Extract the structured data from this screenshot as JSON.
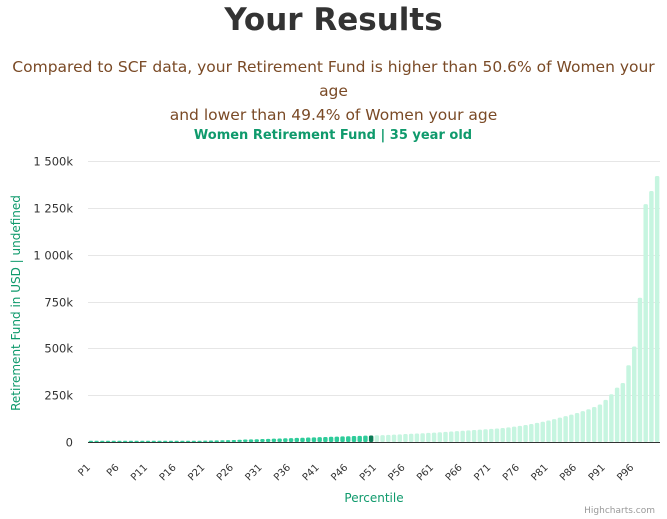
{
  "page": {
    "title": "Your Results",
    "summary_line1": "Compared to SCF data, your Retirement Fund is higher than 50.6% of Women your age",
    "summary_line2": "and lower than 49.4% of Women your age"
  },
  "colors": {
    "highlight": "#2ecc9a",
    "user_bar": "#0c7a55",
    "other_bars": "#c6f5e0",
    "title_text": "#333333",
    "summary_text": "#7a4a26",
    "chart_title": "#0f9a6c",
    "axis_label": "#0f9a6c",
    "tick_text": "#333333",
    "grid": "#e6e6e6",
    "credits": "#999999"
  },
  "chart_data": {
    "type": "bar",
    "title": "Women Retirement Fund | 35 year old",
    "xlabel": "Percentile",
    "ylabel": "Retirement Fund in USD | undefined",
    "credits": "Highcharts.com",
    "ylim": [
      0,
      1500000
    ],
    "y_ticks": [
      0,
      250000,
      500000,
      750000,
      1000000,
      1250000,
      1500000
    ],
    "y_tick_labels": [
      "0",
      "250k",
      "500k",
      "750k",
      "1 000k",
      "1 250k",
      "1 500k"
    ],
    "x_tick_labels": [
      "P1",
      "P6",
      "P11",
      "P16",
      "P21",
      "P26",
      "P31",
      "P36",
      "P41",
      "P46",
      "P51",
      "P56",
      "P61",
      "P66",
      "P71",
      "P76",
      "P81",
      "P86",
      "P91",
      "P96"
    ],
    "grid": true,
    "user_percentile": 50,
    "highlight_through": 50,
    "categories": [
      "P1",
      "P2",
      "P3",
      "P4",
      "P5",
      "P6",
      "P7",
      "P8",
      "P9",
      "P10",
      "P11",
      "P12",
      "P13",
      "P14",
      "P15",
      "P16",
      "P17",
      "P18",
      "P19",
      "P20",
      "P21",
      "P22",
      "P23",
      "P24",
      "P25",
      "P26",
      "P27",
      "P28",
      "P29",
      "P30",
      "P31",
      "P32",
      "P33",
      "P34",
      "P35",
      "P36",
      "P37",
      "P38",
      "P39",
      "P40",
      "P41",
      "P42",
      "P43",
      "P44",
      "P45",
      "P46",
      "P47",
      "P48",
      "P49",
      "P50",
      "P51",
      "P52",
      "P53",
      "P54",
      "P55",
      "P56",
      "P57",
      "P58",
      "P59",
      "P60",
      "P61",
      "P62",
      "P63",
      "P64",
      "P65",
      "P66",
      "P67",
      "P68",
      "P69",
      "P70",
      "P71",
      "P72",
      "P73",
      "P74",
      "P75",
      "P76",
      "P77",
      "P78",
      "P79",
      "P80",
      "P81",
      "P82",
      "P83",
      "P84",
      "P85",
      "P86",
      "P87",
      "P88",
      "P89",
      "P90",
      "P91",
      "P92",
      "P93",
      "P94",
      "P95",
      "P96",
      "P97",
      "P98",
      "P99",
      "P100"
    ],
    "values": [
      0,
      0,
      0,
      0,
      100,
      200,
      500,
      1000,
      1500,
      2000,
      2500,
      3000,
      3500,
      4000,
      4500,
      5000,
      5500,
      6000,
      6500,
      7000,
      7500,
      8000,
      8500,
      9000,
      10000,
      11000,
      12000,
      13000,
      14000,
      15000,
      16000,
      17000,
      18000,
      19000,
      20000,
      21000,
      22000,
      23000,
      24000,
      25000,
      26000,
      27000,
      28000,
      29000,
      30000,
      31000,
      32000,
      33000,
      34000,
      35000,
      36000,
      37000,
      38000,
      39500,
      41000,
      42500,
      44000,
      45500,
      47000,
      48500,
      50000,
      52000,
      54000,
      56000,
      58000,
      60000,
      62000,
      64000,
      66000,
      68000,
      70000,
      72000,
      75000,
      78000,
      82000,
      86000,
      91000,
      96000,
      102000,
      108000,
      115000,
      122000,
      130000,
      138000,
      146000,
      155000,
      165000,
      175000,
      187000,
      200000,
      225000,
      255000,
      290000,
      315000,
      410000,
      510000,
      770000,
      1270000,
      1340000,
      1420000
    ]
  }
}
